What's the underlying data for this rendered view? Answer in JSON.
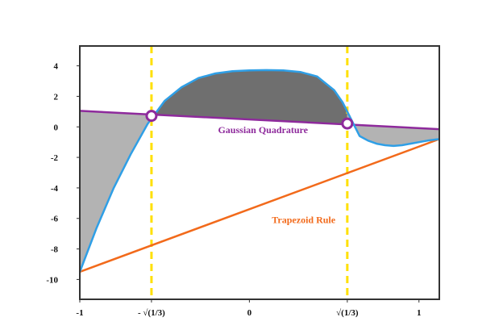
{
  "chart_data": {
    "type": "line",
    "title": "",
    "xlabel": "",
    "ylabel": "",
    "xlim": [
      -1.0,
      1.12
    ],
    "ylim": [
      -11.3,
      5.3
    ],
    "grid": false,
    "x_ticks": [
      {
        "x": -1.0,
        "label": "-1"
      },
      {
        "x": -0.57735,
        "label": "- √(1/3)"
      },
      {
        "x": 0.0,
        "label": "0"
      },
      {
        "x": 0.57735,
        "label": "√(1/3)"
      },
      {
        "x": 1.0,
        "label": "1"
      }
    ],
    "y_ticks": [
      {
        "y": 4,
        "label": "4"
      },
      {
        "y": 2,
        "label": "2"
      },
      {
        "y": 0,
        "label": "0"
      },
      {
        "y": -2,
        "label": "-2"
      },
      {
        "y": -4,
        "label": "-4"
      },
      {
        "y": -6,
        "label": "-6"
      },
      {
        "y": -8,
        "label": "-8"
      },
      {
        "y": -10,
        "label": "-10"
      }
    ],
    "function_curve": {
      "color": "#2f9fe6",
      "x": [
        -1.0,
        -0.9,
        -0.8,
        -0.7,
        -0.6,
        -0.5,
        -0.4,
        -0.3,
        -0.2,
        -0.1,
        0.0,
        0.1,
        0.2,
        0.3,
        0.4,
        0.5,
        0.55,
        0.6,
        0.65,
        0.7,
        0.75,
        0.8,
        0.85,
        0.9,
        0.95,
        1.0,
        1.05,
        1.12
      ],
      "y": [
        -9.5,
        -6.6,
        -4.0,
        -1.8,
        0.2,
        1.7,
        2.6,
        3.2,
        3.5,
        3.65,
        3.7,
        3.72,
        3.7,
        3.6,
        3.3,
        2.4,
        1.6,
        0.5,
        -0.6,
        -0.9,
        -1.1,
        -1.2,
        -1.25,
        -1.2,
        -1.1,
        -1.0,
        -0.9,
        -0.8
      ]
    },
    "gaussian_line": {
      "label": "Gaussian Quadrature",
      "color": "#8e2a9c",
      "x": [
        -1.0,
        1.12
      ],
      "y": [
        1.05,
        -0.15
      ]
    },
    "trapezoid_line": {
      "label": "Trapezoid Rule",
      "color": "#f26a1b",
      "x": [
        -1.0,
        1.12
      ],
      "y": [
        -9.5,
        -0.8
      ]
    },
    "gauss_nodes": {
      "color": "#8e2a9c",
      "x": [
        -0.57735,
        0.57735
      ],
      "y": [
        0.72,
        0.22
      ]
    },
    "vertical_markers": {
      "color": "#ffe000",
      "x": [
        -0.57735,
        0.57735
      ]
    },
    "shaded_regions": [
      {
        "name": "left-gap",
        "x_from": -1.0,
        "x_to": -0.57735,
        "fill": "#b3b3b3"
      },
      {
        "name": "middle-gap",
        "x_from": -0.57735,
        "x_to": 0.57735,
        "fill": "#6f6f6f"
      },
      {
        "name": "right-gap",
        "x_from": 0.57735,
        "x_to": 1.12,
        "fill": "#b3b3b3"
      }
    ],
    "annotations": [
      {
        "text": "Gaussian Quadrature",
        "x": 0.08,
        "y": -0.4,
        "color": "#8e2a9c"
      },
      {
        "text": "Trapezoid Rule",
        "x": 0.32,
        "y": -6.3,
        "color": "#f26a1b"
      }
    ]
  }
}
